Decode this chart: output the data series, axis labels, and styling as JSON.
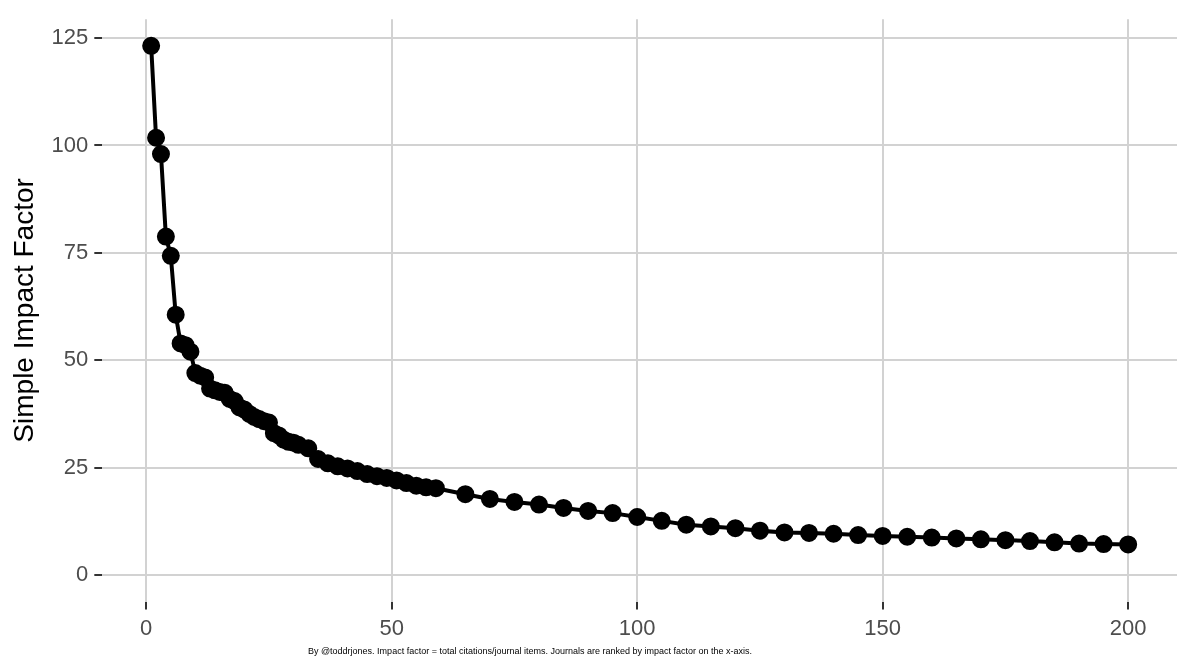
{
  "chart_data": {
    "type": "line",
    "ylabel": "Simple Impact Factor",
    "annotations": [
      "By @toddrjones. Impact factor = total citations/journal items. Journals are ranked by impact factor on the x-axis."
    ],
    "x": [
      1,
      2,
      3,
      4,
      5,
      6,
      7,
      8,
      9,
      10,
      11,
      12,
      13,
      14,
      15,
      16,
      17,
      18,
      19,
      20,
      21,
      22,
      23,
      24,
      25,
      26,
      27,
      28,
      29,
      30,
      31,
      33,
      35,
      37,
      39,
      41,
      43,
      45,
      47,
      49,
      51,
      53,
      55,
      57,
      59,
      65,
      70,
      75,
      80,
      85,
      90,
      95,
      100,
      105,
      110,
      115,
      120,
      125,
      130,
      135,
      140,
      145,
      150,
      155,
      160,
      165,
      170,
      175,
      180,
      185,
      190,
      195,
      200
    ],
    "series": [
      {
        "color": "#000000",
        "values": [
          123.2,
          101.8,
          98,
          78.8,
          74.3,
          60.6,
          53.9,
          53.5,
          52,
          47,
          46.4,
          46,
          43.4,
          43,
          42.6,
          42.4,
          41,
          40.5,
          39,
          38.5,
          37.5,
          36.8,
          36.3,
          35.8,
          35.5,
          33,
          32.5,
          31.5,
          31,
          30.8,
          30.3,
          29.5,
          27,
          26,
          25.3,
          24.8,
          24.2,
          23.5,
          23,
          22.6,
          22,
          21.4,
          20.8,
          20.4,
          20.2,
          18.8,
          17.7,
          17,
          16.4,
          15.6,
          14.9,
          14.4,
          13.5,
          12.6,
          11.7,
          11.3,
          10.9,
          10.3,
          9.9,
          9.8,
          9.6,
          9.3,
          9.1,
          8.9,
          8.7,
          8.5,
          8.3,
          8.1,
          7.9,
          7.6,
          7.3,
          7.2,
          7.1
        ]
      }
    ],
    "xlim": [
      -8.95,
      209.95
    ],
    "xticks": [
      0,
      50,
      100,
      150,
      200
    ],
    "ylim": [
      -6.2,
      129.4
    ],
    "yticks": [
      0,
      25,
      50,
      75,
      100,
      125
    ],
    "grid": true,
    "legend": false,
    "marker": "circle",
    "line_style": "solid"
  }
}
